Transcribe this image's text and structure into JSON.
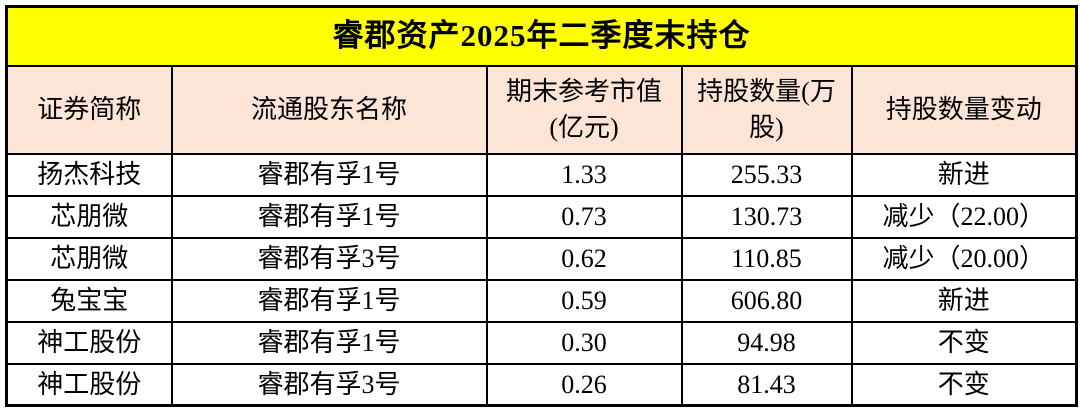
{
  "title": "睿郡资产2025年二季度末持仓",
  "table": {
    "columns": [
      "证券简称",
      "流通股东名称",
      "期末参考市值(亿元)",
      "持股数量(万股)",
      "持股数量变动"
    ],
    "rows": [
      [
        "扬杰科技",
        "睿郡有孚1号",
        "1.33",
        "255.33",
        "新进"
      ],
      [
        "芯朋微",
        "睿郡有孚1号",
        "0.73",
        "130.73",
        "减少（22.00）"
      ],
      [
        "芯朋微",
        "睿郡有孚3号",
        "0.62",
        "110.85",
        "减少（20.00）"
      ],
      [
        "兔宝宝",
        "睿郡有孚1号",
        "0.59",
        "606.80",
        "新进"
      ],
      [
        "神工股份",
        "睿郡有孚1号",
        "0.30",
        "94.98",
        "不变"
      ],
      [
        "神工股份",
        "睿郡有孚3号",
        "0.26",
        "81.43",
        "不变"
      ]
    ]
  },
  "colors": {
    "title_bg": "#FFFF00",
    "header_bg": "#FCE4D6",
    "row_bg": "#FFFFFF",
    "border": "#000000",
    "text": "#000000"
  }
}
